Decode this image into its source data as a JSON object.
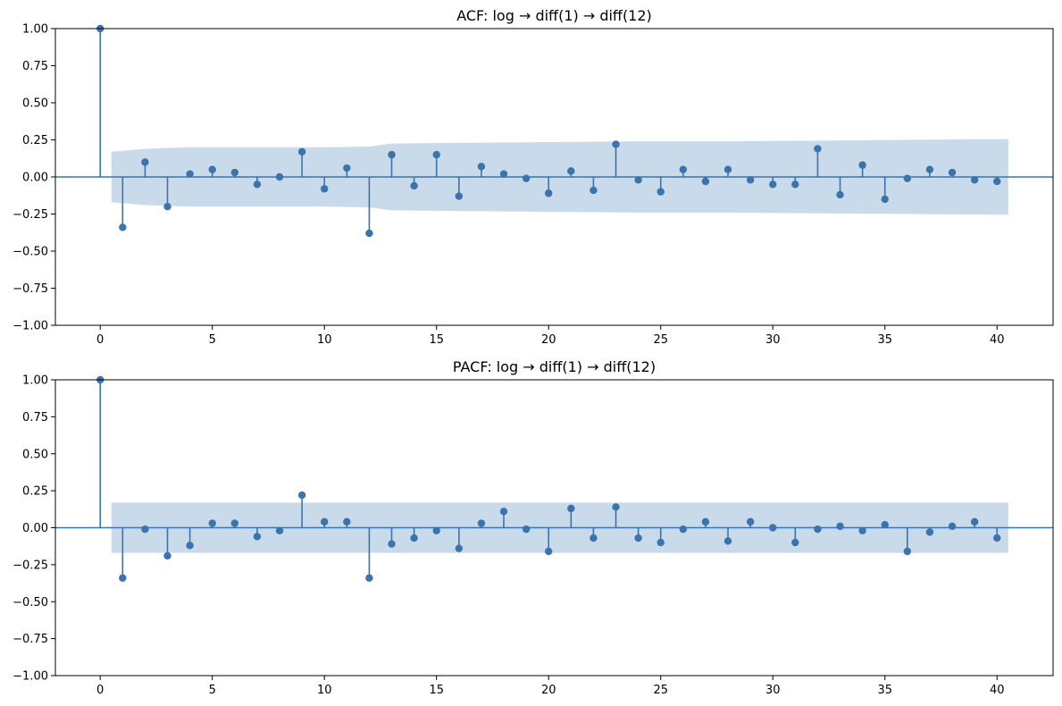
{
  "colors": {
    "stem": "#3b73ad",
    "marker": "#3b73ad",
    "zero_line": "#3b73ad",
    "confidence_band": "#c9daea",
    "axes": "#000000"
  },
  "chart_data": [
    {
      "type": "stem",
      "title": "ACF: log → diff(1) → diff(12)",
      "xlabel": "",
      "ylabel": "",
      "xlim": [
        -2,
        42.5
      ],
      "ylim": [
        -1.0,
        1.0
      ],
      "x_ticks": [
        0,
        5,
        10,
        15,
        20,
        25,
        30,
        35,
        40
      ],
      "y_ticks": [
        -1.0,
        -0.75,
        -0.5,
        -0.25,
        0.0,
        0.25,
        0.5,
        0.75,
        1.0
      ],
      "x_tick_labels": [
        "0",
        "5",
        "10",
        "15",
        "20",
        "25",
        "30",
        "35",
        "40"
      ],
      "y_tick_labels": [
        "−1.00",
        "−0.75",
        "−0.50",
        "−0.25",
        "0.00",
        "0.25",
        "0.50",
        "0.75",
        "1.00"
      ],
      "grid": false,
      "lags": [
        0,
        1,
        2,
        3,
        4,
        5,
        6,
        7,
        8,
        9,
        10,
        11,
        12,
        13,
        14,
        15,
        16,
        17,
        18,
        19,
        20,
        21,
        22,
        23,
        24,
        25,
        26,
        27,
        28,
        29,
        30,
        31,
        32,
        33,
        34,
        35,
        36,
        37,
        38,
        39,
        40
      ],
      "values": [
        1.0,
        -0.34,
        0.1,
        -0.2,
        0.02,
        0.05,
        0.03,
        -0.05,
        0.0,
        0.17,
        -0.08,
        0.06,
        -0.38,
        0.15,
        -0.06,
        0.15,
        -0.13,
        0.07,
        0.02,
        -0.01,
        -0.11,
        0.04,
        -0.09,
        0.22,
        -0.02,
        -0.1,
        0.05,
        -0.03,
        0.05,
        -0.02,
        -0.05,
        -0.05,
        0.19,
        -0.12,
        0.08,
        -0.15,
        -0.01,
        0.05,
        0.03,
        -0.02,
        -0.03
      ],
      "confidence_band": {
        "lags": [
          0.5,
          2,
          4,
          6,
          8,
          10,
          12,
          13,
          16,
          20,
          24,
          28,
          32,
          36,
          40.5
        ],
        "upper": [
          0.17,
          0.19,
          0.2,
          0.2,
          0.2,
          0.2,
          0.205,
          0.225,
          0.23,
          0.235,
          0.24,
          0.24,
          0.245,
          0.25,
          0.255
        ]
      }
    },
    {
      "type": "stem",
      "title": "PACF: log → diff(1) → diff(12)",
      "xlabel": "",
      "ylabel": "",
      "xlim": [
        -2,
        42.5
      ],
      "ylim": [
        -1.0,
        1.0
      ],
      "x_ticks": [
        0,
        5,
        10,
        15,
        20,
        25,
        30,
        35,
        40
      ],
      "y_ticks": [
        -1.0,
        -0.75,
        -0.5,
        -0.25,
        0.0,
        0.25,
        0.5,
        0.75,
        1.0
      ],
      "x_tick_labels": [
        "0",
        "5",
        "10",
        "15",
        "20",
        "25",
        "30",
        "35",
        "40"
      ],
      "y_tick_labels": [
        "−1.00",
        "−0.75",
        "−0.50",
        "−0.25",
        "0.00",
        "0.25",
        "0.50",
        "0.75",
        "1.00"
      ],
      "grid": false,
      "lags": [
        0,
        1,
        2,
        3,
        4,
        5,
        6,
        7,
        8,
        9,
        10,
        11,
        12,
        13,
        14,
        15,
        16,
        17,
        18,
        19,
        20,
        21,
        22,
        23,
        24,
        25,
        26,
        27,
        28,
        29,
        30,
        31,
        32,
        33,
        34,
        35,
        36,
        37,
        38,
        39,
        40
      ],
      "values": [
        1.0,
        -0.34,
        -0.01,
        -0.19,
        -0.12,
        0.03,
        0.03,
        -0.06,
        -0.02,
        0.22,
        0.04,
        0.04,
        -0.34,
        -0.11,
        -0.07,
        -0.02,
        -0.14,
        0.03,
        0.11,
        -0.01,
        -0.16,
        0.13,
        -0.07,
        0.14,
        -0.07,
        -0.1,
        -0.01,
        0.04,
        -0.09,
        0.04,
        0.0,
        -0.1,
        -0.01,
        0.01,
        -0.02,
        0.02,
        -0.16,
        -0.03,
        0.01,
        0.04,
        -0.07
      ],
      "confidence_band": {
        "lags": [
          0.5,
          40.5
        ],
        "upper": [
          0.17,
          0.17
        ]
      }
    }
  ]
}
